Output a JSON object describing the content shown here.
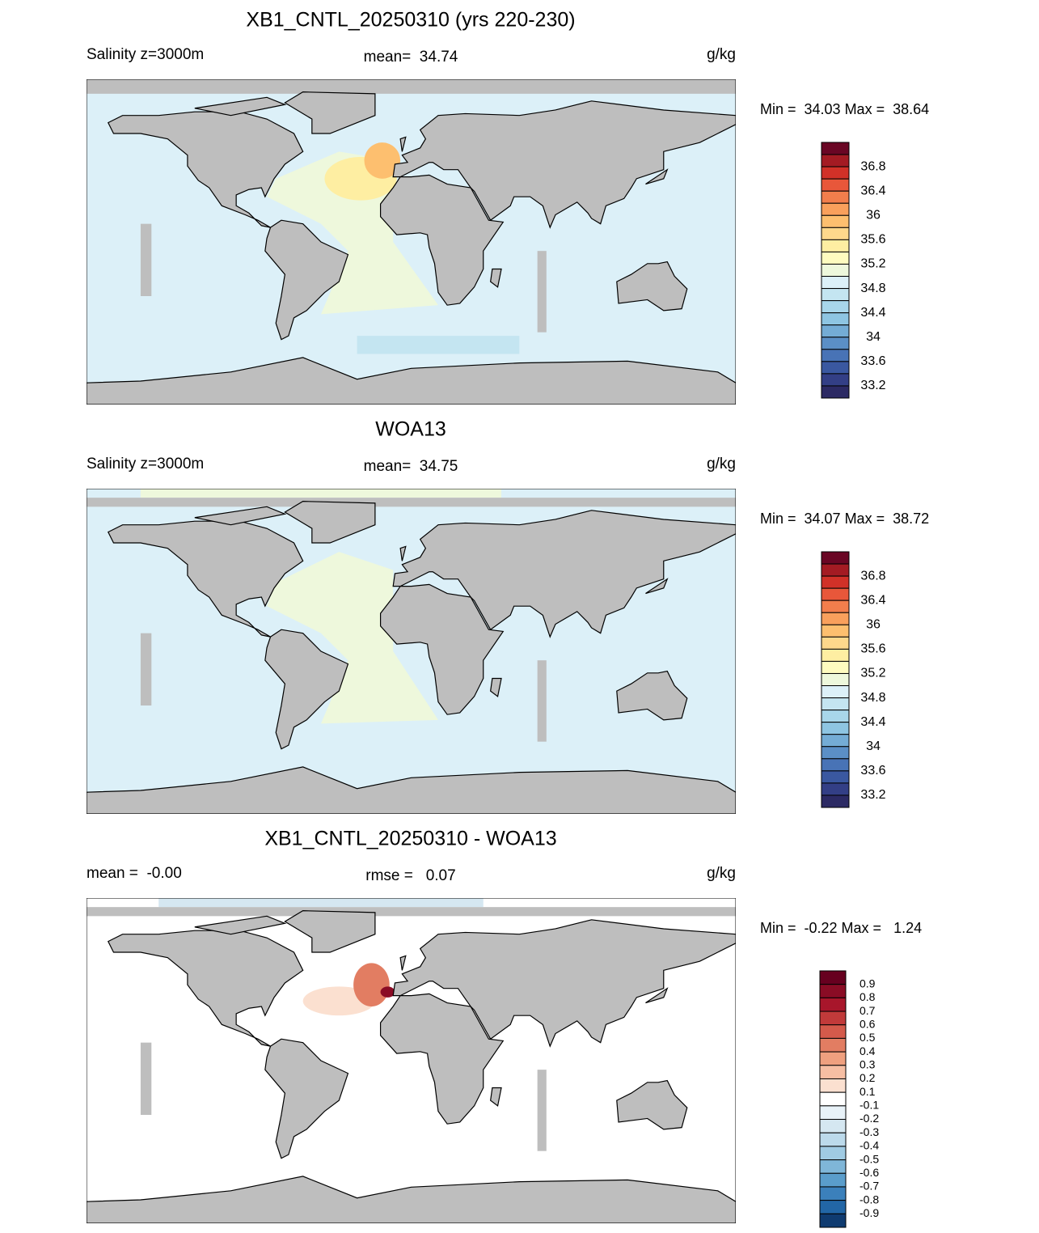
{
  "panels": [
    {
      "title": "XB1_CNTL_20250310 (yrs 220-230)",
      "left_label": "Salinity z=3000m",
      "center_label": "mean=  34.74",
      "units": "g/kg",
      "min_max": "Min =  34.03 Max =  38.64",
      "colorbar": {
        "labels": [
          "36.8",
          "36.4",
          "36",
          "35.6",
          "35.2",
          "34.8",
          "34.4",
          "34",
          "33.6",
          "33.2"
        ],
        "colors": [
          "#6a0624",
          "#a41b23",
          "#d13128",
          "#e8573a",
          "#f27e4c",
          "#f9a05c",
          "#fdbf6f",
          "#fed88c",
          "#feeea2",
          "#fefbbf",
          "#eef8dc",
          "#dcf0f8",
          "#c4e5f1",
          "#a8d6ea",
          "#8ec5e2",
          "#74acd5",
          "#5b8fc6",
          "#4873b6",
          "#3a58a0",
          "#333f86",
          "#2c2a64"
        ]
      }
    },
    {
      "title": "WOA13",
      "left_label": "Salinity z=3000m",
      "center_label": "mean=  34.75",
      "units": "g/kg",
      "min_max": "Min =  34.07 Max =  38.72",
      "colorbar": {
        "labels": [
          "36.8",
          "36.4",
          "36",
          "35.6",
          "35.2",
          "34.8",
          "34.4",
          "34",
          "33.6",
          "33.2"
        ],
        "colors": [
          "#6a0624",
          "#a41b23",
          "#d13128",
          "#e8573a",
          "#f27e4c",
          "#f9a05c",
          "#fdbf6f",
          "#fed88c",
          "#feeea2",
          "#fefbbf",
          "#eef8dc",
          "#dcf0f8",
          "#c4e5f1",
          "#a8d6ea",
          "#8ec5e2",
          "#74acd5",
          "#5b8fc6",
          "#4873b6",
          "#3a58a0",
          "#333f86",
          "#2c2a64"
        ]
      }
    },
    {
      "title": "XB1_CNTL_20250310 - WOA13",
      "left_label": "mean =  -0.00",
      "center_label": "rmse =   0.07",
      "units": "g/kg",
      "min_max": "Min =  -0.22 Max =   1.24",
      "colorbar": {
        "labels": [
          "0.9",
          "0.8",
          "0.7",
          "0.6",
          "0.5",
          "0.4",
          "0.3",
          "0.2",
          "0.1",
          "-0.1",
          "-0.2",
          "-0.3",
          "-0.4",
          "-0.5",
          "-0.6",
          "-0.7",
          "-0.8",
          "-0.9"
        ],
        "colors": [
          "#67001f",
          "#8a0c25",
          "#a8162b",
          "#c13a3a",
          "#d45a4b",
          "#e27d62",
          "#efa07f",
          "#f6bea3",
          "#fbe0d0",
          "#ffffff",
          "#e8f2f8",
          "#d5e7f1",
          "#bcdaeb",
          "#a0cbe3",
          "#7fb6d8",
          "#5a9dcb",
          "#3b80bb",
          "#2266a6",
          "#0f3b70"
        ]
      }
    }
  ]
}
